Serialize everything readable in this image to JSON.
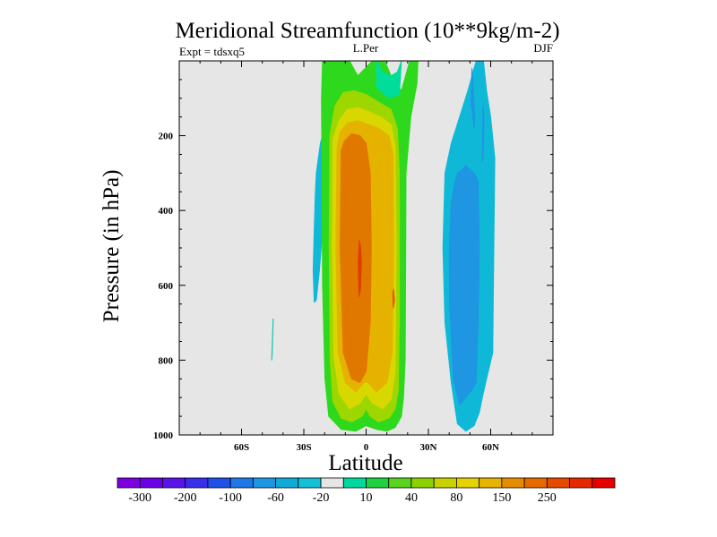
{
  "chart_data": {
    "type": "heatmap",
    "title": "Meridional Streamfunction (10**9kg/m-2)",
    "subtitle_left": "Expt = tdsxq5",
    "subtitle_center": "L.Per",
    "subtitle_right": "DJF",
    "xlabel": "Latitude",
    "ylabel": "Pressure (in hPa)",
    "xlim": [
      -90,
      90
    ],
    "ylim": [
      1000,
      0
    ],
    "x_ticks": [
      {
        "value": -60,
        "label": "60S"
      },
      {
        "value": -30,
        "label": "30S"
      },
      {
        "value": 0,
        "label": "0"
      },
      {
        "value": 30,
        "label": "30N"
      },
      {
        "value": 60,
        "label": "60N"
      }
    ],
    "y_ticks": [
      {
        "value": 200,
        "label": "200"
      },
      {
        "value": 400,
        "label": "400"
      },
      {
        "value": 600,
        "label": "600"
      },
      {
        "value": 800,
        "label": "800"
      },
      {
        "value": 1000,
        "label": "1000"
      }
    ],
    "background_color": "#e6e6e6",
    "colorbar": {
      "colors": [
        "#7f00df",
        "#6a00e6",
        "#5a14eb",
        "#3a2ee8",
        "#1f50e8",
        "#1f78e6",
        "#1e96e1",
        "#10aad6",
        "#14c0d8",
        "#e6e6e6",
        "#00d8a0",
        "#20d040",
        "#5ad21e",
        "#8cd200",
        "#c8d200",
        "#e6d200",
        "#e6b400",
        "#e68c00",
        "#e66a00",
        "#e64a00",
        "#e62800",
        "#e60000"
      ],
      "tick_labels": [
        "-300",
        "-200",
        "-100",
        "-60",
        "-20",
        "10",
        "40",
        "80",
        "150",
        "250"
      ],
      "tick_boundaries": [
        1,
        3,
        5,
        7,
        9,
        11,
        13,
        15,
        17,
        19
      ]
    },
    "regions": [
      {
        "name": "blue-sh-cell",
        "color": "#10b8d8",
        "lat": [
          -24.5,
          -24,
          -22,
          -20.5,
          -19.5,
          -19,
          -19.3,
          -20.5,
          -22.5,
          -24,
          -25,
          -25.5,
          -25
        ],
        "p": [
          360,
          300,
          220,
          190,
          190,
          230,
          300,
          420,
          560,
          640,
          645,
          560,
          450
        ]
      },
      {
        "name": "cyan-sliver",
        "color": "#14c8b0",
        "lat": [
          -45.5,
          -44.8,
          -44.7,
          -45.3
        ],
        "p": [
          800,
          690,
          690,
          790
        ]
      },
      {
        "name": "green-outer",
        "color": "#2ed81c",
        "lat": [
          -21,
          -21.5,
          -21.3,
          -21,
          -19.8,
          -18,
          -12,
          -5,
          0,
          5,
          10,
          14,
          17,
          18,
          18.8,
          19,
          19.2,
          21.5,
          24.5,
          25,
          21,
          17,
          12,
          9,
          3,
          -4,
          -8,
          -14
        ],
        "p": [
          0,
          100,
          300,
          600,
          850,
          950,
          985,
          990,
          975,
          985,
          990,
          980,
          950,
          900,
          800,
          600,
          300,
          150,
          60,
          0,
          0,
          80,
          40,
          0,
          0,
          40,
          0,
          0
        ]
      },
      {
        "name": "teal-top",
        "color": "#00dc9a",
        "lat": [
          5,
          8,
          12,
          15,
          17,
          16,
          11,
          5
        ],
        "p": [
          0,
          30,
          40,
          30,
          0,
          90,
          100,
          70
        ]
      },
      {
        "name": "yellow-green",
        "color": "#9ed600",
        "lat": [
          -17.5,
          -17.8,
          -17.3,
          -16,
          -12,
          -7,
          -2,
          0,
          2,
          6,
          11,
          14,
          15.5,
          16,
          16,
          15,
          12,
          6,
          0,
          -6,
          -11,
          -15
        ],
        "p": [
          200,
          500,
          800,
          910,
          955,
          965,
          950,
          930,
          950,
          965,
          955,
          930,
          880,
          700,
          300,
          180,
          130,
          110,
          90,
          80,
          85,
          120
        ]
      },
      {
        "name": "yellow",
        "color": "#d8d800",
        "lat": [
          -16,
          -16.3,
          -15.5,
          -13,
          -8,
          -3,
          0,
          3,
          8,
          12,
          14,
          14.5,
          14,
          12,
          7,
          1,
          -4,
          -9,
          -13
        ],
        "p": [
          210,
          500,
          790,
          890,
          930,
          915,
          890,
          915,
          930,
          905,
          830,
          500,
          230,
          170,
          150,
          135,
          125,
          130,
          160
        ]
      },
      {
        "name": "gold",
        "color": "#e6b200",
        "lat": [
          -14,
          -14.5,
          -13.5,
          -10,
          -5,
          -1,
          1,
          5,
          10,
          12.5,
          13.3,
          13,
          11,
          6,
          1,
          -4,
          -9,
          -12.5
        ],
        "p": [
          230,
          500,
          780,
          860,
          885,
          860,
          860,
          885,
          860,
          780,
          500,
          250,
          200,
          180,
          170,
          160,
          165,
          190
        ]
      },
      {
        "name": "orange",
        "color": "#e07800",
        "lat": [
          -12,
          -12.5,
          -11,
          -7,
          -3,
          0,
          2,
          2.5,
          2,
          0,
          -3,
          -7,
          -10.5
        ],
        "p": [
          240,
          500,
          780,
          850,
          860,
          830,
          700,
          500,
          300,
          220,
          200,
          195,
          215
        ]
      },
      {
        "name": "red-core",
        "color": "#e03c00",
        "lat": [
          -3.3,
          -3.8,
          -3.4,
          -2.7,
          -2.3,
          -2.6
        ],
        "p": [
          480,
          540,
          630,
          610,
          540,
          500
        ]
      },
      {
        "name": "red-speck",
        "color": "#e05a00",
        "lat": [
          12.8,
          13.1,
          13.7,
          13.2
        ],
        "p": [
          620,
          660,
          640,
          610
        ]
      },
      {
        "name": "blue-nh-outer",
        "color": "#10b8d8",
        "lat": [
          53,
          49,
          45,
          41,
          38,
          37,
          38,
          41,
          44,
          48,
          52,
          54.5,
          56,
          58,
          61,
          61.5,
          62,
          60,
          58,
          56.5
        ],
        "p": [
          0,
          80,
          150,
          220,
          300,
          500,
          700,
          860,
          970,
          990,
          975,
          940,
          900,
          850,
          780,
          500,
          260,
          150,
          80,
          0
        ]
      },
      {
        "name": "blue-nh-inner",
        "color": "#1e96e1",
        "lat": [
          44,
          42.5,
          41,
          40,
          40.2,
          42,
          45,
          48,
          51,
          53,
          54,
          54.5,
          54,
          52,
          50,
          48,
          46.5
        ],
        "p": [
          300,
          330,
          380,
          500,
          650,
          850,
          920,
          900,
          880,
          860,
          700,
          500,
          320,
          300,
          290,
          280,
          290
        ]
      },
      {
        "name": "blue-nh-streak",
        "color": "#1e96e1",
        "lat": [
          51,
          50.5,
          52,
          52.3,
          51.5
        ],
        "p": [
          20,
          110,
          180,
          150,
          60
        ]
      },
      {
        "name": "blue-nh-wisp",
        "color": "#1e96e1",
        "lat": [
          56.3,
          55.9,
          56.3,
          56.8
        ],
        "p": [
          120,
          270,
          260,
          150
        ]
      }
    ]
  }
}
